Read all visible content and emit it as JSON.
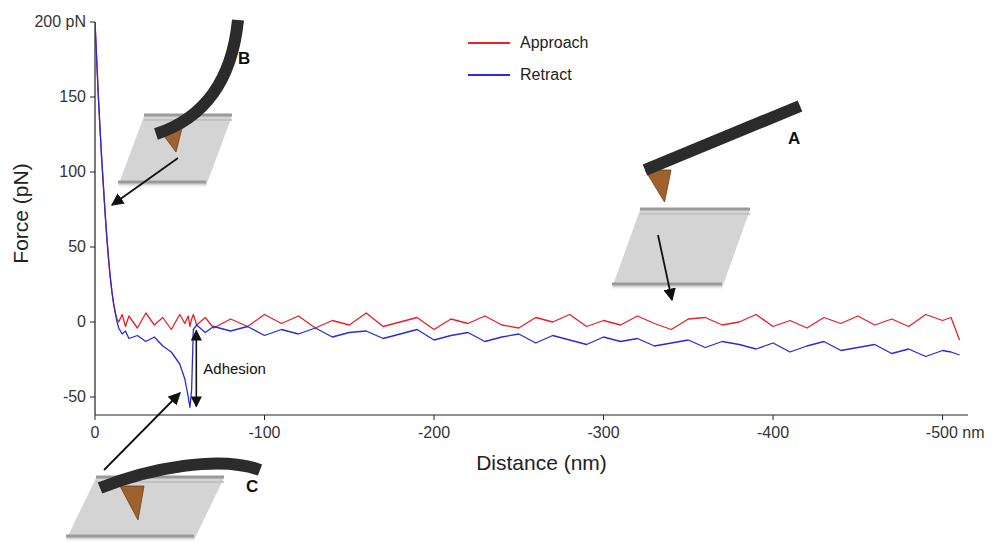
{
  "chart_data": {
    "type": "line",
    "x_label": "Distance (nm)",
    "y_label": "Force (pN)",
    "x": [
      0,
      -1,
      -2,
      -3,
      -4,
      -5,
      -6,
      -7,
      -8,
      -9,
      -10,
      -11,
      -12,
      -13,
      -14,
      -16,
      -18,
      -20,
      -25,
      -30,
      -35,
      -40,
      -45,
      -50,
      -53,
      -55,
      -56,
      -57,
      -58,
      -60,
      -65,
      -70,
      -80,
      -90,
      -100,
      -110,
      -120,
      -130,
      -140,
      -150,
      -160,
      -170,
      -180,
      -190,
      -200,
      -210,
      -220,
      -230,
      -240,
      -250,
      -260,
      -270,
      -280,
      -290,
      -300,
      -310,
      -320,
      -330,
      -340,
      -350,
      -360,
      -370,
      -380,
      -390,
      -400,
      -410,
      -420,
      -430,
      -440,
      -450,
      -460,
      -470,
      -480,
      -490,
      -500,
      -505,
      -510
    ],
    "series": [
      {
        "name": "Approach",
        "color": "#e8202a",
        "values": [
          200,
          175,
          150,
          128,
          108,
          90,
          72,
          56,
          42,
          30,
          20,
          12,
          6,
          2,
          0,
          5,
          -3,
          4,
          -4,
          6,
          -2,
          3,
          -5,
          5,
          -1,
          4,
          -3,
          2,
          5,
          -2,
          3,
          -4,
          2,
          -3,
          5,
          -1,
          4,
          -4,
          1,
          -2,
          6,
          -3,
          0,
          3,
          -5,
          2,
          -1,
          4,
          -2,
          -4,
          3,
          0,
          5,
          -3,
          1,
          -2,
          4,
          -1,
          -5,
          2,
          3,
          -2,
          0,
          5,
          -3,
          1,
          -4,
          3,
          -1,
          4,
          -2,
          2,
          -3,
          5,
          1,
          3,
          -12
        ]
      },
      {
        "name": "Retract",
        "color": "#2a2ad8",
        "values": [
          200,
          175,
          150,
          128,
          108,
          90,
          72,
          56,
          42,
          30,
          20,
          12,
          6,
          0,
          -4,
          -8,
          -6,
          -11,
          -9,
          -13,
          -10,
          -16,
          -20,
          -28,
          -38,
          -50,
          -57,
          -45,
          -5,
          -2,
          -7,
          -3,
          -6,
          -3,
          -9,
          -5,
          -8,
          -4,
          -10,
          -7,
          -6,
          -11,
          -8,
          -5,
          -12,
          -9,
          -7,
          -13,
          -10,
          -8,
          -14,
          -9,
          -12,
          -15,
          -10,
          -13,
          -11,
          -16,
          -14,
          -12,
          -17,
          -13,
          -15,
          -18,
          -14,
          -20,
          -16,
          -13,
          -19,
          -17,
          -15,
          -21,
          -18,
          -23,
          -19,
          -20,
          -22
        ]
      }
    ],
    "xlim": [
      0,
      -515
    ],
    "ylim": [
      -62,
      200
    ],
    "xticks": [
      0,
      -100,
      -200,
      -300,
      -400,
      {
        "value": -500,
        "label": "-500 nm"
      }
    ],
    "yticks": [
      {
        "value": 200,
        "label": "200 pN"
      },
      150,
      100,
      50,
      0,
      -50
    ],
    "legend": "top",
    "annotations": [
      {
        "text": "Adhesion"
      },
      {
        "text": "A"
      },
      {
        "text": "B"
      },
      {
        "text": "C"
      }
    ]
  }
}
